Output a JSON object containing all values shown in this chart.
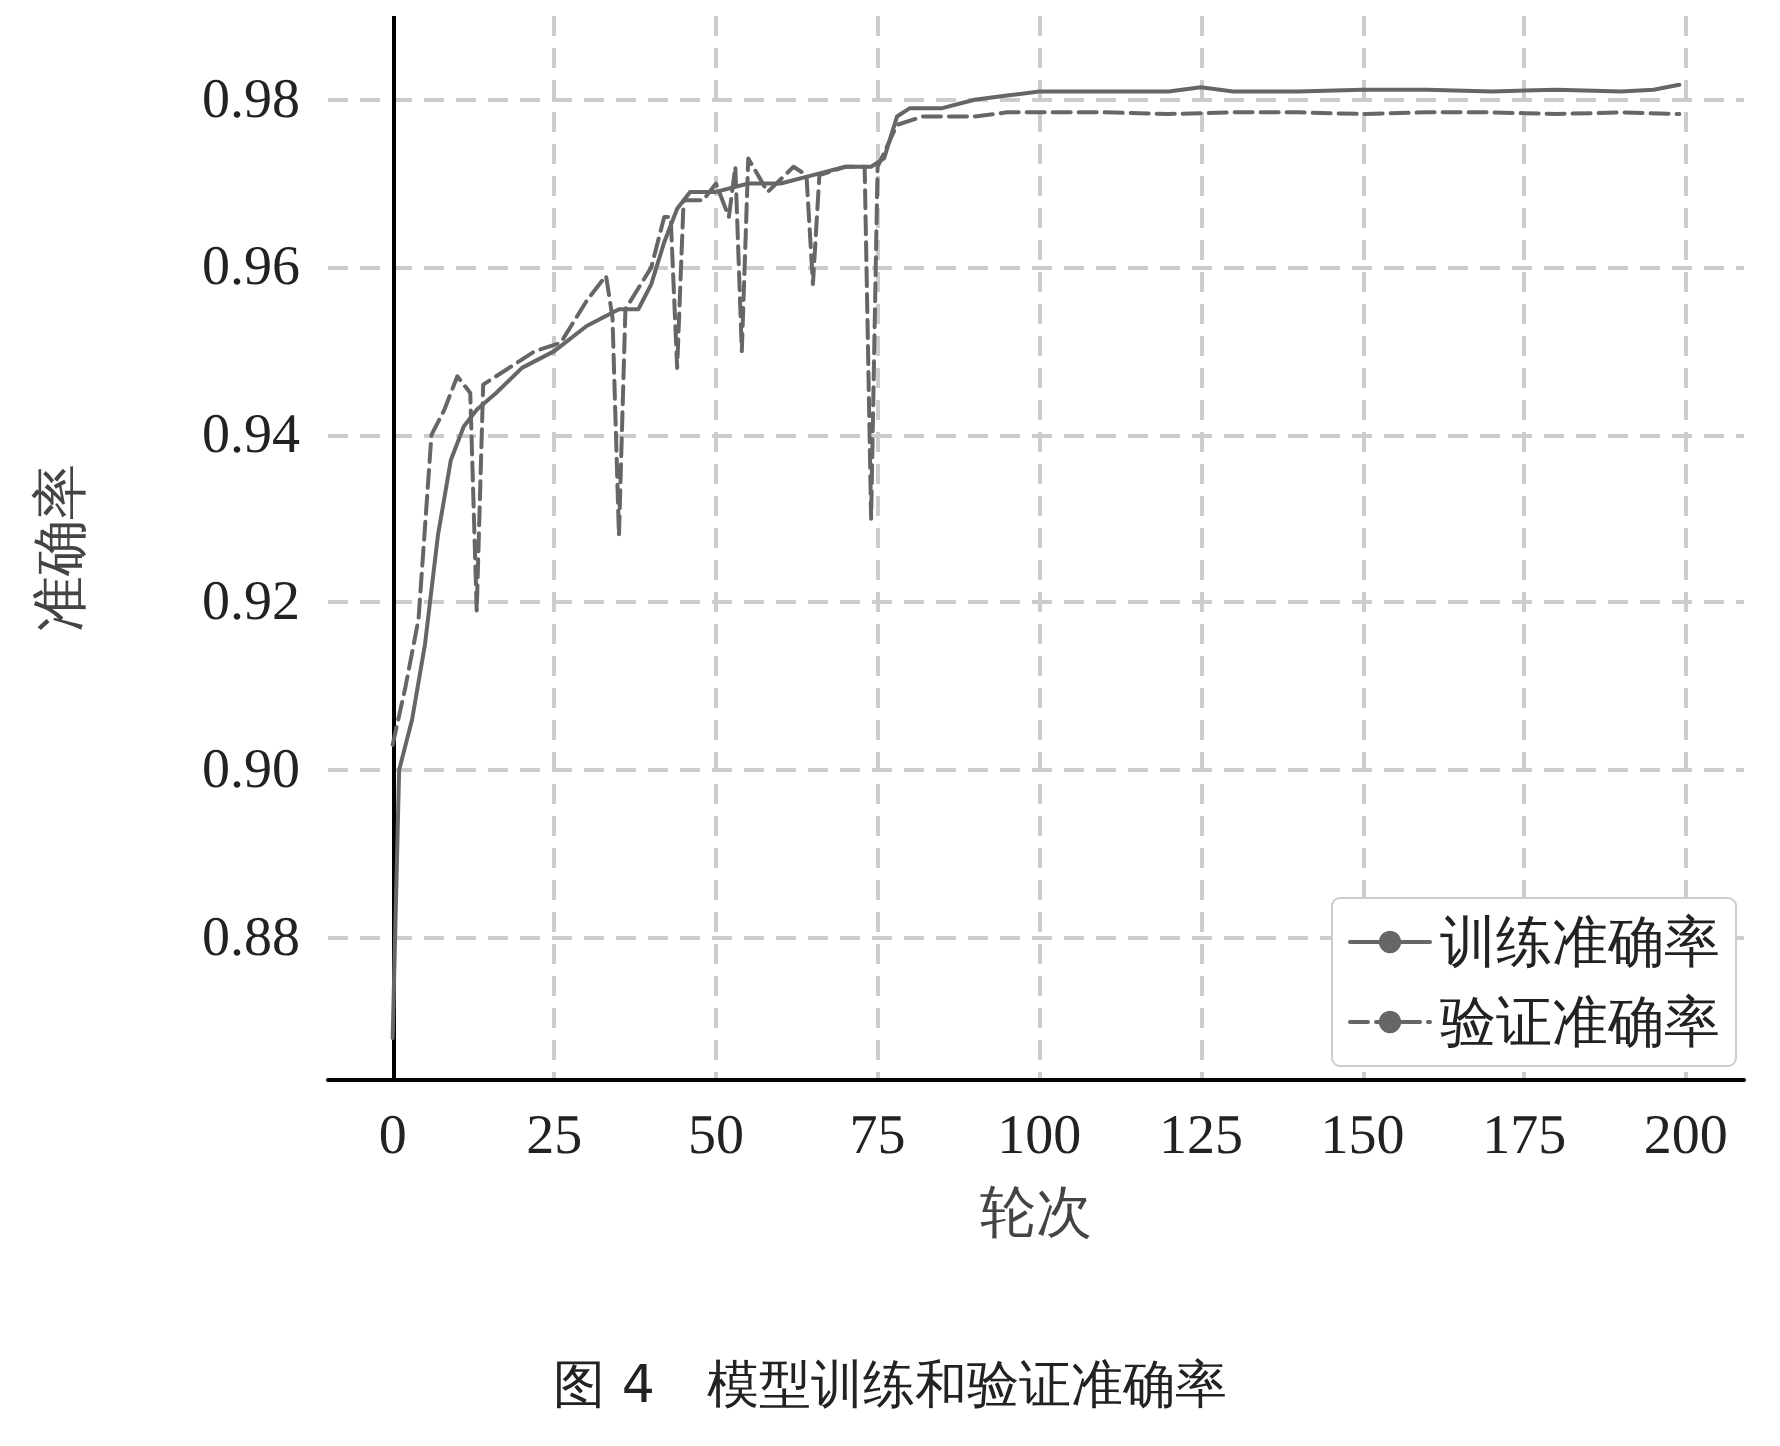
{
  "chart_data": {
    "type": "line",
    "title": "图 4　模型训练和验证准确率",
    "xlabel": "轮次",
    "ylabel": "准确率",
    "xlim": [
      -10,
      209
    ],
    "xticks": [
      0,
      25,
      50,
      75,
      100,
      125,
      150,
      175,
      200
    ],
    "ylim": [
      0.863,
      0.99
    ],
    "yticks": [
      {
        "value": 0.88,
        "label": "0.88"
      },
      {
        "value": 0.9,
        "label": "0.90"
      },
      {
        "value": 0.92,
        "label": "0.92"
      },
      {
        "value": 0.94,
        "label": "0.94"
      },
      {
        "value": 0.96,
        "label": "0.96"
      },
      {
        "value": 0.98,
        "label": "0.98"
      }
    ],
    "grid": true,
    "legend": "bottom right",
    "marker": "none",
    "series": [
      {
        "name": "训练准确率",
        "color": "#666666",
        "line_style": "solid",
        "x": [
          0,
          1,
          3,
          5,
          7,
          9,
          11,
          13,
          16,
          20,
          25,
          30,
          35,
          38,
          40,
          42,
          44,
          46,
          50,
          55,
          60,
          65,
          70,
          74,
          76,
          78,
          80,
          85,
          90,
          95,
          100,
          110,
          120,
          125,
          130,
          140,
          150,
          160,
          170,
          180,
          190,
          195,
          199
        ],
        "values": [
          0.868,
          0.9,
          0.906,
          0.915,
          0.928,
          0.937,
          0.941,
          0.943,
          0.945,
          0.948,
          0.95,
          0.953,
          0.955,
          0.955,
          0.958,
          0.963,
          0.967,
          0.969,
          0.969,
          0.97,
          0.97,
          0.971,
          0.972,
          0.972,
          0.973,
          0.978,
          0.979,
          0.979,
          0.98,
          0.9805,
          0.981,
          0.981,
          0.981,
          0.9815,
          0.981,
          0.981,
          0.9812,
          0.9812,
          0.981,
          0.9812,
          0.981,
          0.9812,
          0.9818
        ]
      },
      {
        "name": "验证准确率",
        "color": "#666666",
        "line_style": "dashed",
        "x": [
          0,
          2,
          4,
          6,
          8,
          10,
          12,
          13,
          14,
          18,
          22,
          26,
          30,
          33,
          34,
          35,
          36,
          40,
          42,
          43,
          44,
          45,
          48,
          50,
          52,
          53,
          54,
          55,
          58,
          62,
          64,
          65,
          66,
          70,
          73,
          74,
          75,
          78,
          82,
          85,
          90,
          95,
          100,
          110,
          120,
          130,
          140,
          150,
          160,
          170,
          180,
          190,
          199
        ],
        "values": [
          0.903,
          0.91,
          0.918,
          0.94,
          0.943,
          0.947,
          0.945,
          0.919,
          0.946,
          0.948,
          0.95,
          0.951,
          0.956,
          0.959,
          0.954,
          0.928,
          0.955,
          0.96,
          0.966,
          0.966,
          0.948,
          0.968,
          0.968,
          0.97,
          0.966,
          0.972,
          0.95,
          0.973,
          0.969,
          0.972,
          0.971,
          0.958,
          0.971,
          0.972,
          0.972,
          0.93,
          0.972,
          0.977,
          0.978,
          0.978,
          0.978,
          0.9785,
          0.9785,
          0.9785,
          0.9783,
          0.9785,
          0.9785,
          0.9783,
          0.9785,
          0.9785,
          0.9783,
          0.9785,
          0.9783
        ]
      }
    ]
  }
}
